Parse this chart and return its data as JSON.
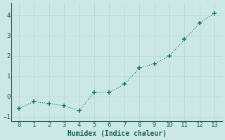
{
  "x": [
    0,
    1,
    2,
    3,
    4,
    5,
    6,
    7,
    8,
    9,
    10,
    11,
    12,
    13
  ],
  "y": [
    -0.6,
    -0.25,
    -0.35,
    -0.45,
    -0.7,
    0.2,
    0.2,
    0.6,
    1.4,
    1.6,
    2.0,
    2.8,
    3.6,
    4.1
  ],
  "xlabel": "Humidex (Indice chaleur)",
  "ylim": [
    -1.2,
    4.6
  ],
  "xlim": [
    -0.5,
    13.5
  ],
  "yticks": [
    -1,
    0,
    1,
    2,
    3,
    4
  ],
  "xticks": [
    0,
    1,
    2,
    3,
    4,
    5,
    6,
    7,
    8,
    9,
    10,
    11,
    12,
    13
  ],
  "line_color": "#1a7a6e",
  "marker": "+",
  "marker_size": 5,
  "bg_color": "#cce8e4",
  "grid_color": "#b8d8d4",
  "tick_label_color": "#1a5f58",
  "xlabel_color": "#1a5f58",
  "font_family": "monospace",
  "tick_fontsize": 6.5,
  "xlabel_fontsize": 7.0
}
